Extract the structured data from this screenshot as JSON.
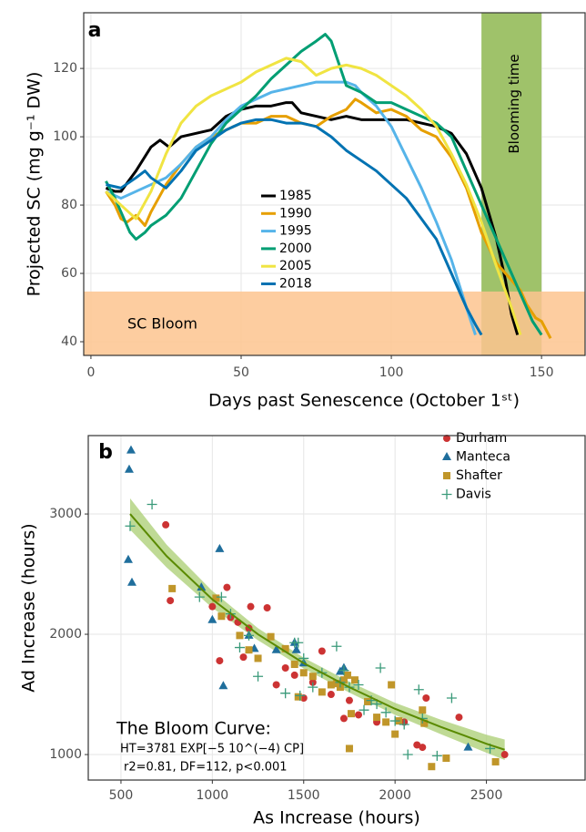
{
  "chart_data": [
    {
      "type": "line",
      "panel_label": "a",
      "x_label": "Days past Senescence (October 1ˢᵗ)",
      "y_label": "Projected SC (mg g⁻¹ DW)",
      "xlim": [
        -2.4,
        164.5
      ],
      "ylim": [
        36,
        136.3
      ],
      "xticks": [
        0,
        50,
        100,
        150
      ],
      "yticks": [
        40,
        60,
        80,
        100,
        120
      ],
      "grid": true,
      "legend_position": "center",
      "shaded_regions": [
        {
          "label": "Blooming time",
          "xlim": [
            130,
            150
          ],
          "color": "#9fc26a"
        },
        {
          "label": "SC Bloom",
          "ylim": [
            36,
            54.7
          ],
          "color": "#fdc48f"
        }
      ],
      "series": [
        {
          "name": "1985",
          "color": "#000000",
          "x": [
            5,
            8,
            10,
            15,
            20,
            23,
            26,
            30,
            35,
            40,
            45,
            50,
            55,
            60,
            65,
            67,
            70,
            75,
            80,
            85,
            90,
            95,
            100,
            105,
            110,
            115,
            120,
            125,
            130,
            135,
            138,
            140,
            142
          ],
          "values": [
            85,
            84,
            84,
            90,
            97,
            99,
            97,
            100,
            101,
            102,
            106,
            108,
            109,
            109,
            110,
            110,
            107,
            106,
            105,
            106,
            105,
            105,
            105,
            105,
            104,
            103,
            101,
            95,
            85,
            70,
            58,
            48,
            42
          ]
        },
        {
          "name": "1990",
          "color": "#E69F00",
          "x": [
            5,
            8,
            10,
            12,
            15,
            18,
            20,
            25,
            30,
            35,
            40,
            45,
            50,
            55,
            60,
            65,
            70,
            75,
            80,
            85,
            88,
            90,
            95,
            100,
            105,
            110,
            115,
            120,
            125,
            130,
            135,
            140,
            143,
            145,
            148,
            150,
            153
          ],
          "values": [
            84,
            80,
            76,
            75,
            77,
            74,
            78,
            86,
            92,
            97,
            100,
            102,
            104,
            104,
            106,
            106,
            104,
            103,
            106,
            108,
            111,
            110,
            107,
            108,
            106,
            102,
            100,
            94,
            85,
            72,
            63,
            58,
            55,
            51,
            47,
            46,
            41
          ]
        },
        {
          "name": "1995",
          "color": "#56B4E9",
          "x": [
            5,
            10,
            15,
            20,
            25,
            30,
            35,
            40,
            45,
            50,
            55,
            60,
            65,
            70,
            75,
            80,
            85,
            88,
            90,
            95,
            100,
            105,
            110,
            115,
            120,
            125,
            128
          ],
          "values": [
            84,
            82,
            84,
            86,
            88,
            92,
            97,
            100,
            105,
            109,
            111,
            113,
            114,
            115,
            116,
            116,
            116,
            115,
            113,
            109,
            103,
            94,
            85,
            75,
            64,
            50,
            42
          ]
        },
        {
          "name": "2000",
          "color": "#009E73",
          "x": [
            5,
            8,
            10,
            13,
            15,
            18,
            20,
            25,
            30,
            35,
            40,
            45,
            50,
            55,
            60,
            65,
            70,
            75,
            78,
            80,
            85,
            90,
            95,
            100,
            105,
            110,
            115,
            120,
            125,
            130,
            135,
            140,
            143,
            145,
            147,
            150
          ],
          "values": [
            87,
            82,
            78,
            72,
            70,
            72,
            74,
            77,
            82,
            90,
            98,
            104,
            108,
            112,
            117,
            121,
            125,
            128,
            130,
            128,
            115,
            113,
            110,
            110,
            108,
            106,
            104,
            100,
            90,
            80,
            70,
            60,
            54,
            50,
            46,
            42
          ]
        },
        {
          "name": "2005",
          "color": "#F0E442",
          "x": [
            5,
            10,
            15,
            20,
            25,
            30,
            35,
            40,
            45,
            50,
            55,
            60,
            65,
            70,
            75,
            80,
            85,
            90,
            95,
            100,
            105,
            110,
            115,
            120,
            125,
            130,
            135,
            140,
            143
          ],
          "values": [
            84,
            80,
            76,
            84,
            95,
            104,
            109,
            112,
            114,
            116,
            119,
            121,
            123,
            122,
            118,
            120,
            121,
            120,
            118,
            115,
            112,
            108,
            103,
            95,
            86,
            75,
            62,
            50,
            42
          ]
        },
        {
          "name": "2018",
          "color": "#0072B2",
          "x": [
            5,
            10,
            15,
            18,
            20,
            25,
            30,
            35,
            40,
            45,
            50,
            55,
            60,
            65,
            70,
            75,
            80,
            85,
            90,
            95,
            100,
            105,
            110,
            115,
            120,
            125,
            128,
            130
          ],
          "values": [
            86,
            85,
            88,
            90,
            88,
            85,
            90,
            96,
            99,
            102,
            104,
            105,
            105,
            104,
            104,
            103,
            100,
            96,
            93,
            90,
            86,
            82,
            76,
            70,
            60,
            50,
            45,
            42
          ]
        }
      ]
    },
    {
      "type": "scatter",
      "panel_label": "b",
      "x_label": "As Increase (hours)",
      "y_label": "Ad Increase (hours)",
      "xlim": [
        321,
        3040
      ],
      "ylim": [
        788,
        3652
      ],
      "xticks": [
        500,
        1000,
        1500,
        2000,
        2500
      ],
      "yticks": [
        1000,
        2000,
        3000
      ],
      "grid": true,
      "legend_position": "top-right",
      "annotations": [
        "The Bloom Curve:",
        "HT=3781 EXP[−5 10^(−4) CP]",
        "r2=0.81, DF=112, p<0.001"
      ],
      "fit": {
        "color": "#5a8a00",
        "band_color": "#a9cd72",
        "x": [
          550,
          750,
          1000,
          1250,
          1500,
          1750,
          2000,
          2250,
          2500,
          2600
        ],
        "values": [
          3000,
          2650,
          2290,
          2000,
          1760,
          1560,
          1380,
          1230,
          1090,
          1040
        ],
        "lower": [
          2870,
          2555,
          2220,
          1950,
          1715,
          1515,
          1330,
          1170,
          1015,
          955
        ],
        "upper": [
          3130,
          2745,
          2360,
          2050,
          1805,
          1605,
          1430,
          1290,
          1165,
          1125
        ]
      },
      "series": [
        {
          "name": "Durham",
          "color": "#cc3333",
          "marker": "circle",
          "x": [
            745,
            770,
            1000,
            1040,
            1080,
            1100,
            1140,
            1170,
            1200,
            1210,
            1300,
            1350,
            1400,
            1450,
            1500,
            1550,
            1600,
            1650,
            1700,
            1720,
            1750,
            1800,
            1900,
            2050,
            2120,
            2150,
            2170,
            2350,
            2600
          ],
          "values": [
            2910,
            2280,
            2230,
            1780,
            2390,
            2140,
            2100,
            1810,
            2050,
            2230,
            2220,
            1580,
            1720,
            1660,
            1470,
            1600,
            1860,
            1500,
            1590,
            1300,
            1450,
            1330,
            1270,
            1270,
            1080,
            1060,
            1470,
            1310,
            1000
          ]
        },
        {
          "name": "Manteca",
          "color": "#1f6e9c",
          "marker": "triangle",
          "x": [
            555,
            545,
            540,
            560,
            940,
            1000,
            1040,
            1060,
            1200,
            1230,
            1350,
            1450,
            1460,
            1500,
            1700,
            1720,
            2400
          ],
          "values": [
            3530,
            3370,
            2620,
            2430,
            2390,
            2120,
            2710,
            1570,
            1990,
            1880,
            1870,
            1930,
            1870,
            1760,
            1690,
            1720,
            1060
          ]
        },
        {
          "name": "Shafter",
          "color": "#c0962a",
          "marker": "square",
          "x": [
            780,
            1020,
            1050,
            1150,
            1200,
            1250,
            1320,
            1400,
            1450,
            1470,
            1500,
            1550,
            1600,
            1650,
            1680,
            1700,
            1720,
            1740,
            1750,
            1760,
            1780,
            1850,
            1900,
            1950,
            1980,
            2000,
            2020,
            2150,
            2160,
            2200,
            2280,
            2550
          ],
          "values": [
            2380,
            2300,
            2150,
            1990,
            1870,
            1800,
            1980,
            1880,
            1750,
            1480,
            1680,
            1650,
            1520,
            1580,
            1590,
            1560,
            1620,
            1660,
            1050,
            1340,
            1620,
            1440,
            1310,
            1270,
            1580,
            1170,
            1280,
            1370,
            1260,
            900,
            970,
            940
          ]
        },
        {
          "name": "Davis",
          "color": "#3a9a7a",
          "marker": "plus",
          "x": [
            550,
            670,
            930,
            1050,
            1100,
            1150,
            1200,
            1250,
            1400,
            1450,
            1470,
            1480,
            1500,
            1550,
            1600,
            1680,
            1700,
            1720,
            1750,
            1800,
            1830,
            1870,
            1900,
            1920,
            1950,
            2000,
            2050,
            2070,
            2130,
            2150,
            2230,
            2310,
            2520
          ],
          "values": [
            2900,
            3080,
            2310,
            2310,
            2170,
            1890,
            1990,
            1650,
            1510,
            1930,
            1930,
            1490,
            1800,
            1560,
            1680,
            1900,
            1600,
            1700,
            1560,
            1580,
            1370,
            1450,
            1420,
            1720,
            1350,
            1280,
            1250,
            1000,
            1540,
            1300,
            990,
            1470,
            1050
          ]
        }
      ]
    }
  ]
}
